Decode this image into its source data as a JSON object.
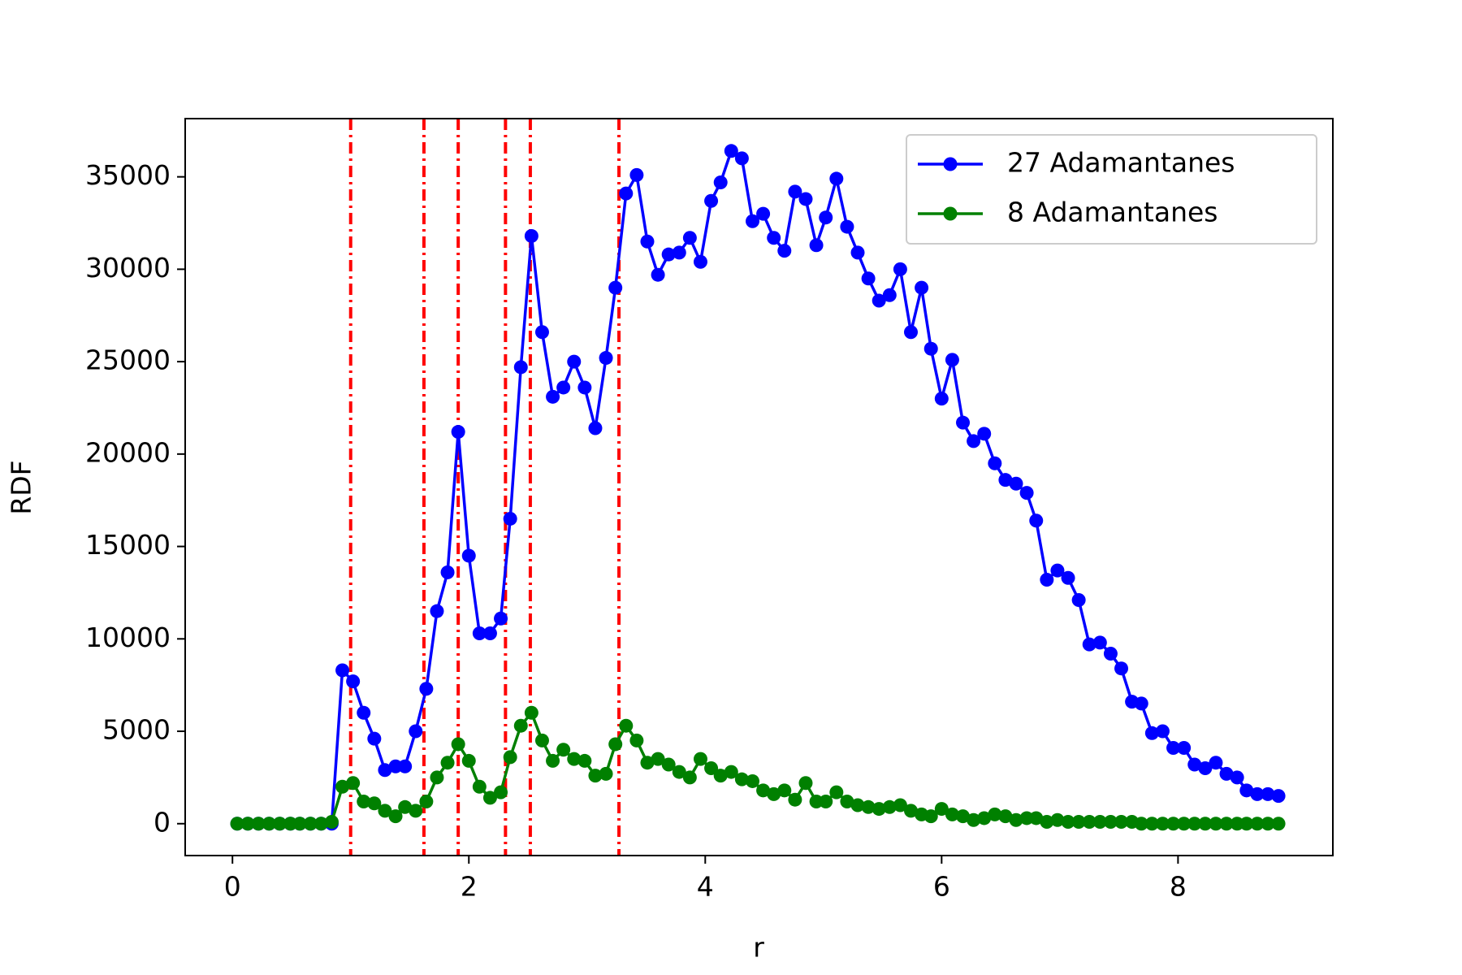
{
  "chart_data": {
    "type": "line",
    "x_label": "r",
    "y_label": "RDF",
    "x": [
      0.04,
      0.13,
      0.22,
      0.31,
      0.4,
      0.49,
      0.57,
      0.66,
      0.75,
      0.84,
      0.93,
      1.02,
      1.11,
      1.2,
      1.29,
      1.38,
      1.46,
      1.55,
      1.64,
      1.73,
      1.82,
      1.91,
      2.0,
      2.09,
      2.18,
      2.27,
      2.35,
      2.44,
      2.53,
      2.62,
      2.71,
      2.8,
      2.89,
      2.98,
      3.07,
      3.16,
      3.24,
      3.33,
      3.42,
      3.51,
      3.6,
      3.69,
      3.78,
      3.87,
      3.96,
      4.05,
      4.13,
      4.22,
      4.31,
      4.4,
      4.49,
      4.58,
      4.67,
      4.76,
      4.85,
      4.94,
      5.02,
      5.11,
      5.2,
      5.29,
      5.38,
      5.47,
      5.56,
      5.65,
      5.74,
      5.83,
      5.91,
      6.0,
      6.09,
      6.18,
      6.27,
      6.36,
      6.45,
      6.54,
      6.63,
      6.72,
      6.8,
      6.89,
      6.98,
      7.07,
      7.16,
      7.25,
      7.34,
      7.43,
      7.52,
      7.61,
      7.69,
      7.78,
      7.87,
      7.96,
      8.05,
      8.14,
      8.23,
      8.32,
      8.41,
      8.5,
      8.58,
      8.67,
      8.76,
      8.85
    ],
    "series": [
      {
        "name": "27 Adamantanes",
        "color": "#0000ff",
        "values": [
          0,
          0,
          0,
          0,
          0,
          0,
          0,
          0,
          0,
          0,
          8300,
          7700,
          6000,
          4600,
          2900,
          3100,
          3100,
          5000,
          7300,
          11500,
          13600,
          21200,
          14500,
          10300,
          10300,
          11100,
          16500,
          24700,
          31800,
          26600,
          23100,
          23600,
          25000,
          23600,
          21400,
          25200,
          29000,
          34100,
          35100,
          31500,
          29700,
          30800,
          30900,
          31700,
          30400,
          33700,
          34700,
          36400,
          36000,
          32600,
          33000,
          31700,
          31000,
          34200,
          33800,
          31300,
          32800,
          34900,
          32300,
          30900,
          29500,
          28300,
          28600,
          30000,
          26600,
          29000,
          25700,
          23000,
          25100,
          21700,
          20700,
          21100,
          19500,
          18600,
          18400,
          17900,
          16400,
          13200,
          13700,
          13300,
          12100,
          9700,
          9800,
          9200,
          8400,
          6600,
          6500,
          4900,
          5000,
          4100,
          4100,
          3200,
          3000,
          3300,
          2700,
          2500,
          1800,
          1600,
          1600,
          1500
        ]
      },
      {
        "name": "8 Adamantanes",
        "color": "#008000",
        "values": [
          0,
          0,
          0,
          0,
          0,
          0,
          0,
          0,
          0,
          100,
          2000,
          2200,
          1200,
          1100,
          700,
          400,
          900,
          700,
          1200,
          2500,
          3300,
          4300,
          3400,
          2000,
          1400,
          1700,
          3600,
          5300,
          6000,
          4500,
          3400,
          4000,
          3500,
          3400,
          2600,
          2700,
          4300,
          5300,
          4500,
          3300,
          3500,
          3200,
          2800,
          2500,
          3500,
          3000,
          2600,
          2800,
          2400,
          2300,
          1800,
          1600,
          1800,
          1300,
          2200,
          1200,
          1200,
          1700,
          1200,
          1000,
          900,
          800,
          900,
          1000,
          700,
          500,
          400,
          800,
          500,
          400,
          200,
          300,
          500,
          400,
          200,
          300,
          300,
          100,
          200,
          100,
          100,
          100,
          100,
          100,
          100,
          100,
          0,
          0,
          0,
          0,
          0,
          0,
          0,
          0,
          0,
          0,
          0,
          0,
          0,
          0
        ]
      }
    ],
    "vlines": [
      1.0,
      1.62,
      1.91,
      2.31,
      2.52,
      3.27
    ],
    "vline_color": "#ff0000",
    "xlim": [
      -0.4,
      9.31
    ],
    "ylim": [
      -1725,
      38150
    ],
    "xticks": [
      0,
      2,
      4,
      6,
      8
    ],
    "yticks": [
      0,
      5000,
      10000,
      15000,
      20000,
      25000,
      30000,
      35000
    ],
    "grid": false,
    "legend": "upper right"
  }
}
